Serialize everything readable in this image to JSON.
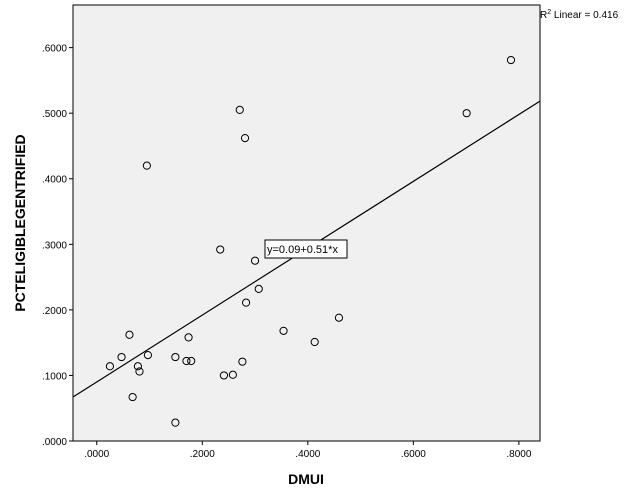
{
  "chart_data": {
    "type": "scatter",
    "title": "",
    "xlabel": "DMUI",
    "ylabel": "PCTELIGIBLEGENTRIFIED",
    "xlim": [
      -0.045,
      0.84
    ],
    "ylim": [
      0,
      0.665
    ],
    "x_ticks": [
      0,
      0.2,
      0.4,
      0.6,
      0.8
    ],
    "x_tick_labels": [
      ".0000",
      ".2000",
      ".4000",
      ".6000",
      ".8000"
    ],
    "y_ticks": [
      0,
      0.1,
      0.2,
      0.3,
      0.4,
      0.5,
      0.6
    ],
    "y_tick_labels": [
      ".0000",
      ".1000",
      ".2000",
      ".3000",
      ".4000",
      ".5000",
      ".6000"
    ],
    "grid": false,
    "background_color": "#f0f0f0",
    "points": [
      {
        "x": 0.025,
        "y": 0.114
      },
      {
        "x": 0.047,
        "y": 0.128
      },
      {
        "x": 0.062,
        "y": 0.162
      },
      {
        "x": 0.068,
        "y": 0.067
      },
      {
        "x": 0.078,
        "y": 0.114
      },
      {
        "x": 0.081,
        "y": 0.106
      },
      {
        "x": 0.095,
        "y": 0.42
      },
      {
        "x": 0.097,
        "y": 0.131
      },
      {
        "x": 0.149,
        "y": 0.128
      },
      {
        "x": 0.149,
        "y": 0.028
      },
      {
        "x": 0.17,
        "y": 0.122
      },
      {
        "x": 0.174,
        "y": 0.158
      },
      {
        "x": 0.179,
        "y": 0.122
      },
      {
        "x": 0.234,
        "y": 0.292
      },
      {
        "x": 0.241,
        "y": 0.1
      },
      {
        "x": 0.258,
        "y": 0.101
      },
      {
        "x": 0.271,
        "y": 0.505
      },
      {
        "x": 0.276,
        "y": 0.121
      },
      {
        "x": 0.281,
        "y": 0.462
      },
      {
        "x": 0.283,
        "y": 0.211
      },
      {
        "x": 0.3,
        "y": 0.275
      },
      {
        "x": 0.307,
        "y": 0.232
      },
      {
        "x": 0.354,
        "y": 0.168
      },
      {
        "x": 0.413,
        "y": 0.151
      },
      {
        "x": 0.459,
        "y": 0.188
      },
      {
        "x": 0.701,
        "y": 0.5
      },
      {
        "x": 0.785,
        "y": 0.581
      }
    ],
    "fit_line": {
      "intercept": 0.09,
      "slope": 0.51
    },
    "fit_equation_label": "y=0.09+0.51*x",
    "r2_prefix": "R",
    "r2_superscript": "2",
    "r2_suffix": " Linear = 0.416"
  }
}
